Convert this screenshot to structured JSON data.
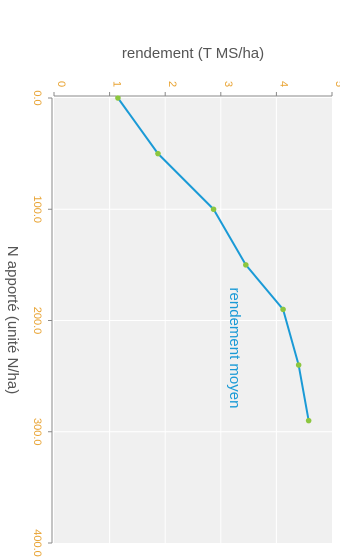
{
  "chart_data": {
    "type": "line",
    "title": "rendement (T MS/ha)",
    "xlabel": "N apporté (unité N/ha)",
    "ylabel": "rendement (T MS/ha)",
    "xlim": [
      0,
      400
    ],
    "ylim": [
      0,
      5
    ],
    "x_ticks": [
      "0.0",
      "100.0",
      "200.0",
      "300.0",
      "400.0"
    ],
    "y_ticks": [
      "0",
      "1",
      "2",
      "3",
      "4",
      "5"
    ],
    "grid": true,
    "series": [
      {
        "name": "rendement moyen",
        "x": [
          0,
          50,
          100,
          150,
          190,
          240,
          290
        ],
        "y": [
          1.15,
          1.87,
          2.87,
          3.45,
          4.12,
          4.4,
          4.58
        ]
      }
    ],
    "colors": {
      "line": "#1a9ad6",
      "marker": "#8cc63f",
      "tick": "#e8a230",
      "plot_bg": "#f0f0f0",
      "grid": "#ffffff",
      "text": "#555555"
    }
  }
}
